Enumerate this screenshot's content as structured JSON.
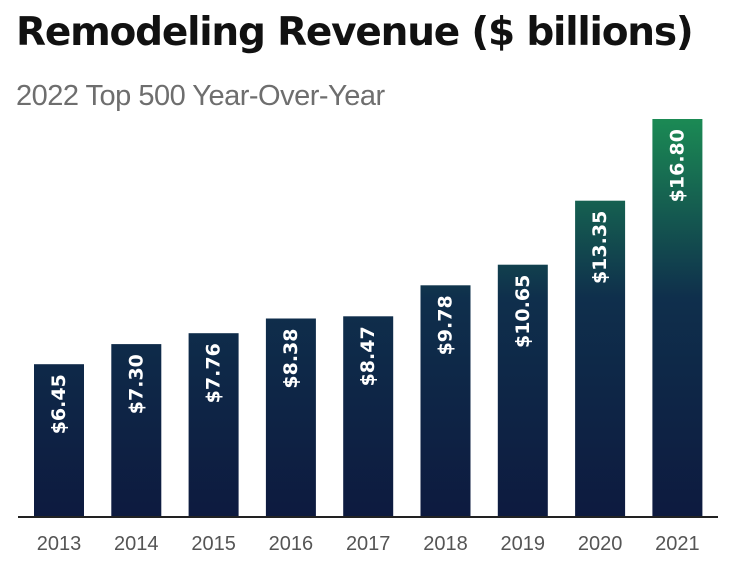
{
  "chart_data": {
    "type": "bar",
    "title": "Remodeling Revenue ($ billions)",
    "subtitle": "2022 Top 500 Year-Over-Year",
    "categories": [
      "2013",
      "2014",
      "2015",
      "2016",
      "2017",
      "2018",
      "2019",
      "2020",
      "2021"
    ],
    "values": [
      6.45,
      7.3,
      7.76,
      8.38,
      8.47,
      9.78,
      10.65,
      13.35,
      16.8
    ],
    "data_labels": [
      "$6.45",
      "$7.30",
      "$7.76",
      "$8.38",
      "$8.47",
      "$9.78",
      "$10.65",
      "$13.35",
      "$16.80"
    ],
    "xlabel": "",
    "ylabel": "",
    "ylim": [
      0,
      16.8
    ],
    "grid": false,
    "legend": "none",
    "colors": {
      "bar_bottom": "#0d1a3f",
      "bar_top": "#1b8a54",
      "axis": "#222222"
    }
  }
}
